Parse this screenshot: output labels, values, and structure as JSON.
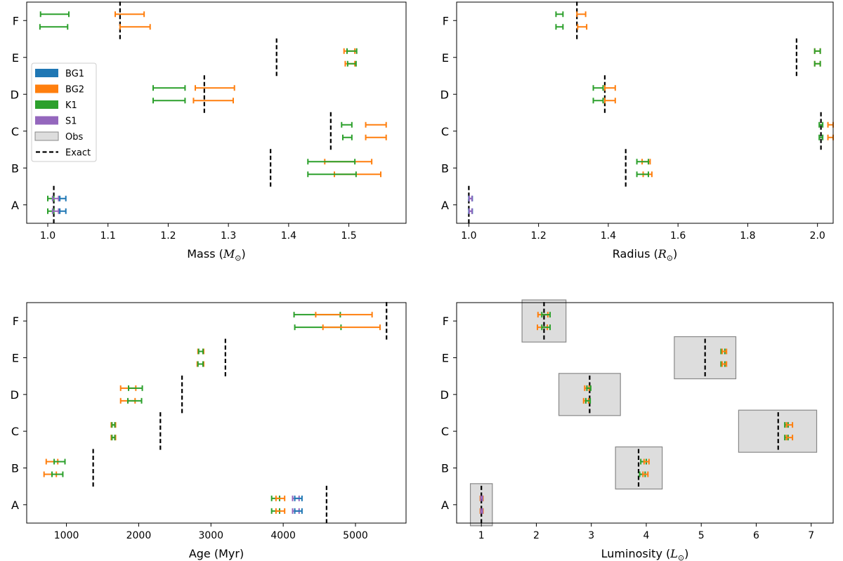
{
  "colors": {
    "BG1": "#1f77b4",
    "BG2": "#ff7f0e",
    "K1": "#2ca02c",
    "S1": "#9467bd",
    "obs_fill": "#dddddd",
    "obs_edge": "#888888",
    "exact": "#000000"
  },
  "legend": [
    {
      "key": "BG1",
      "label": "BG1",
      "kind": "patch"
    },
    {
      "key": "BG2",
      "label": "BG2",
      "kind": "patch"
    },
    {
      "key": "K1",
      "label": "K1",
      "kind": "patch"
    },
    {
      "key": "S1",
      "label": "S1",
      "kind": "patch"
    },
    {
      "key": "obs",
      "label": "Obs",
      "kind": "box"
    },
    {
      "key": "exact",
      "label": "Exact",
      "kind": "dash"
    }
  ],
  "chart_data": [
    {
      "id": "mass",
      "type": "errorbar",
      "xlabel": "Mass (M_⊙)",
      "xlabel_main": "Mass ",
      "xlabel_sym": "M",
      "xlabel_sub": "⊙",
      "xlim": [
        0.965,
        1.595
      ],
      "xticks": [
        1.0,
        1.1,
        1.2,
        1.3,
        1.4,
        1.5
      ],
      "xtick_labels": [
        "1.0",
        "1.1",
        "1.2",
        "1.3",
        "1.4",
        "1.5"
      ],
      "categories": [
        "A",
        "B",
        "C",
        "D",
        "E",
        "F"
      ],
      "legend_position": "center-left",
      "exact": {
        "A": 1.01,
        "B": 1.37,
        "C": 1.47,
        "D": 1.26,
        "E": 1.38,
        "F": 1.12
      },
      "obs": [],
      "bars": [
        {
          "cat": "A",
          "sub": 0,
          "series": "K1",
          "lo": 1.0,
          "hi": 1.01
        },
        {
          "cat": "A",
          "sub": 0,
          "series": "S1",
          "lo": 1.008,
          "hi": 1.018
        },
        {
          "cat": "A",
          "sub": 0,
          "series": "BG1",
          "lo": 1.02,
          "hi": 1.03
        },
        {
          "cat": "A",
          "sub": 1,
          "series": "K1",
          "lo": 1.0,
          "hi": 1.01
        },
        {
          "cat": "A",
          "sub": 1,
          "series": "S1",
          "lo": 1.008,
          "hi": 1.018
        },
        {
          "cat": "A",
          "sub": 1,
          "series": "BG1",
          "lo": 1.02,
          "hi": 1.03
        },
        {
          "cat": "B",
          "sub": 0,
          "series": "BG2",
          "lo": 1.46,
          "hi": 1.538
        },
        {
          "cat": "B",
          "sub": 0,
          "series": "K1",
          "lo": 1.432,
          "hi": 1.51
        },
        {
          "cat": "B",
          "sub": 1,
          "series": "BG2",
          "lo": 1.476,
          "hi": 1.553
        },
        {
          "cat": "B",
          "sub": 1,
          "series": "K1",
          "lo": 1.432,
          "hi": 1.512
        },
        {
          "cat": "C",
          "sub": 0,
          "series": "K1",
          "lo": 1.488,
          "hi": 1.505
        },
        {
          "cat": "C",
          "sub": 0,
          "series": "BG2",
          "lo": 1.528,
          "hi": 1.562
        },
        {
          "cat": "C",
          "sub": 1,
          "series": "K1",
          "lo": 1.49,
          "hi": 1.505
        },
        {
          "cat": "C",
          "sub": 1,
          "series": "BG2",
          "lo": 1.528,
          "hi": 1.562
        },
        {
          "cat": "D",
          "sub": 0,
          "series": "K1",
          "lo": 1.175,
          "hi": 1.228
        },
        {
          "cat": "D",
          "sub": 0,
          "series": "BG2",
          "lo": 1.245,
          "hi": 1.31
        },
        {
          "cat": "D",
          "sub": 1,
          "series": "K1",
          "lo": 1.175,
          "hi": 1.228
        },
        {
          "cat": "D",
          "sub": 1,
          "series": "BG2",
          "lo": 1.242,
          "hi": 1.308
        },
        {
          "cat": "E",
          "sub": 0,
          "series": "BG2",
          "lo": 1.492,
          "hi": 1.51
        },
        {
          "cat": "E",
          "sub": 0,
          "series": "K1",
          "lo": 1.497,
          "hi": 1.513
        },
        {
          "cat": "E",
          "sub": 1,
          "series": "BG2",
          "lo": 1.494,
          "hi": 1.51
        },
        {
          "cat": "E",
          "sub": 1,
          "series": "K1",
          "lo": 1.498,
          "hi": 1.512
        },
        {
          "cat": "F",
          "sub": 0,
          "series": "K1",
          "lo": 0.988,
          "hi": 1.035
        },
        {
          "cat": "F",
          "sub": 0,
          "series": "BG2",
          "lo": 1.112,
          "hi": 1.16
        },
        {
          "cat": "F",
          "sub": 1,
          "series": "K1",
          "lo": 0.987,
          "hi": 1.033
        },
        {
          "cat": "F",
          "sub": 1,
          "series": "BG2",
          "lo": 1.12,
          "hi": 1.17
        }
      ]
    },
    {
      "id": "radius",
      "type": "errorbar",
      "xlabel": "Radius (R_⊙)",
      "xlabel_main": "Radius ",
      "xlabel_sym": "R",
      "xlabel_sub": "⊙",
      "xlim": [
        0.965,
        2.045
      ],
      "xticks": [
        1.0,
        1.2,
        1.4,
        1.6,
        1.8,
        2.0
      ],
      "xtick_labels": [
        "1.0",
        "1.2",
        "1.4",
        "1.6",
        "1.8",
        "2.0"
      ],
      "categories": [
        "A",
        "B",
        "C",
        "D",
        "E",
        "F"
      ],
      "exact": {
        "A": 1.0,
        "B": 1.45,
        "C": 2.01,
        "D": 1.39,
        "E": 1.94,
        "F": 1.31
      },
      "obs": [],
      "bars": [
        {
          "cat": "A",
          "sub": 0,
          "series": "BG1",
          "lo": 1.0,
          "hi": 1.01
        },
        {
          "cat": "A",
          "sub": 0,
          "series": "S1",
          "lo": 1.001,
          "hi": 1.009
        },
        {
          "cat": "A",
          "sub": 1,
          "series": "BG1",
          "lo": 1.0,
          "hi": 1.01
        },
        {
          "cat": "A",
          "sub": 1,
          "series": "S1",
          "lo": 1.001,
          "hi": 1.009
        },
        {
          "cat": "B",
          "sub": 0,
          "series": "BG2",
          "lo": 1.497,
          "hi": 1.52
        },
        {
          "cat": "B",
          "sub": 0,
          "series": "K1",
          "lo": 1.482,
          "hi": 1.515
        },
        {
          "cat": "B",
          "sub": 1,
          "series": "BG2",
          "lo": 1.5,
          "hi": 1.525
        },
        {
          "cat": "B",
          "sub": 1,
          "series": "K1",
          "lo": 1.482,
          "hi": 1.515
        },
        {
          "cat": "C",
          "sub": 0,
          "series": "K1",
          "lo": 2.005,
          "hi": 2.015
        },
        {
          "cat": "C",
          "sub": 0,
          "series": "BG2",
          "lo": 2.03,
          "hi": 2.045
        },
        {
          "cat": "C",
          "sub": 1,
          "series": "K1",
          "lo": 2.005,
          "hi": 2.015
        },
        {
          "cat": "C",
          "sub": 1,
          "series": "BG2",
          "lo": 2.03,
          "hi": 2.045
        },
        {
          "cat": "D",
          "sub": 0,
          "series": "K1",
          "lo": 1.357,
          "hi": 1.385
        },
        {
          "cat": "D",
          "sub": 0,
          "series": "BG2",
          "lo": 1.39,
          "hi": 1.42
        },
        {
          "cat": "D",
          "sub": 1,
          "series": "K1",
          "lo": 1.357,
          "hi": 1.385
        },
        {
          "cat": "D",
          "sub": 1,
          "series": "BG2",
          "lo": 1.39,
          "hi": 1.42
        },
        {
          "cat": "E",
          "sub": 0,
          "series": "BG2",
          "lo": 1.992,
          "hi": 2.008
        },
        {
          "cat": "E",
          "sub": 0,
          "series": "K1",
          "lo": 1.992,
          "hi": 2.008
        },
        {
          "cat": "E",
          "sub": 1,
          "series": "BG2",
          "lo": 1.992,
          "hi": 2.008
        },
        {
          "cat": "E",
          "sub": 1,
          "series": "K1",
          "lo": 1.992,
          "hi": 2.008
        },
        {
          "cat": "F",
          "sub": 0,
          "series": "K1",
          "lo": 1.25,
          "hi": 1.27
        },
        {
          "cat": "F",
          "sub": 0,
          "series": "BG2",
          "lo": 1.31,
          "hi": 1.335
        },
        {
          "cat": "F",
          "sub": 1,
          "series": "K1",
          "lo": 1.25,
          "hi": 1.27
        },
        {
          "cat": "F",
          "sub": 1,
          "series": "BG2",
          "lo": 1.312,
          "hi": 1.338
        }
      ]
    },
    {
      "id": "age",
      "type": "errorbar",
      "xlabel": "Age (Myr)",
      "xlabel_main": "Age (Myr)",
      "xlabel_sym": "",
      "xlabel_sub": "",
      "xlim": [
        450,
        5700
      ],
      "xticks": [
        1000,
        2000,
        3000,
        4000,
        5000
      ],
      "xtick_labels": [
        "1000",
        "2000",
        "3000",
        "4000",
        "5000"
      ],
      "categories": [
        "A",
        "B",
        "C",
        "D",
        "E",
        "F"
      ],
      "exact": {
        "A": 4600,
        "B": 1370,
        "C": 2300,
        "D": 2600,
        "E": 3200,
        "F": 5430
      },
      "obs": [],
      "bars": [
        {
          "cat": "A",
          "sub": 0,
          "series": "K1",
          "lo": 3840,
          "hi": 3950
        },
        {
          "cat": "A",
          "sub": 0,
          "series": "BG2",
          "lo": 3900,
          "hi": 4020
        },
        {
          "cat": "A",
          "sub": 0,
          "series": "S1",
          "lo": 4130,
          "hi": 4220
        },
        {
          "cat": "A",
          "sub": 0,
          "series": "BG1",
          "lo": 4160,
          "hi": 4260
        },
        {
          "cat": "A",
          "sub": 1,
          "series": "K1",
          "lo": 3840,
          "hi": 3950
        },
        {
          "cat": "A",
          "sub": 1,
          "series": "BG2",
          "lo": 3900,
          "hi": 4020
        },
        {
          "cat": "A",
          "sub": 1,
          "series": "S1",
          "lo": 4130,
          "hi": 4220
        },
        {
          "cat": "A",
          "sub": 1,
          "series": "BG1",
          "lo": 4160,
          "hi": 4260
        },
        {
          "cat": "B",
          "sub": 0,
          "series": "BG2",
          "lo": 720,
          "hi": 880
        },
        {
          "cat": "B",
          "sub": 0,
          "series": "K1",
          "lo": 830,
          "hi": 980
        },
        {
          "cat": "B",
          "sub": 1,
          "series": "BG2",
          "lo": 690,
          "hi": 860
        },
        {
          "cat": "B",
          "sub": 1,
          "series": "K1",
          "lo": 800,
          "hi": 950
        },
        {
          "cat": "C",
          "sub": 0,
          "series": "BG2",
          "lo": 1620,
          "hi": 1680
        },
        {
          "cat": "C",
          "sub": 0,
          "series": "K1",
          "lo": 1630,
          "hi": 1670
        },
        {
          "cat": "C",
          "sub": 1,
          "series": "BG2",
          "lo": 1620,
          "hi": 1680
        },
        {
          "cat": "C",
          "sub": 1,
          "series": "K1",
          "lo": 1630,
          "hi": 1670
        },
        {
          "cat": "D",
          "sub": 0,
          "series": "BG2",
          "lo": 1750,
          "hi": 1960
        },
        {
          "cat": "D",
          "sub": 0,
          "series": "K1",
          "lo": 1860,
          "hi": 2050
        },
        {
          "cat": "D",
          "sub": 1,
          "series": "BG2",
          "lo": 1750,
          "hi": 1950
        },
        {
          "cat": "D",
          "sub": 1,
          "series": "K1",
          "lo": 1850,
          "hi": 2040
        },
        {
          "cat": "E",
          "sub": 0,
          "series": "BG2",
          "lo": 2820,
          "hi": 2900
        },
        {
          "cat": "E",
          "sub": 0,
          "series": "K1",
          "lo": 2830,
          "hi": 2890
        },
        {
          "cat": "E",
          "sub": 1,
          "series": "BG2",
          "lo": 2810,
          "hi": 2900
        },
        {
          "cat": "E",
          "sub": 1,
          "series": "K1",
          "lo": 2820,
          "hi": 2890
        },
        {
          "cat": "F",
          "sub": 0,
          "series": "K1",
          "lo": 4150,
          "hi": 4790
        },
        {
          "cat": "F",
          "sub": 0,
          "series": "BG2",
          "lo": 4450,
          "hi": 5230
        },
        {
          "cat": "F",
          "sub": 1,
          "series": "K1",
          "lo": 4160,
          "hi": 4800
        },
        {
          "cat": "F",
          "sub": 1,
          "series": "BG2",
          "lo": 4550,
          "hi": 5340
        }
      ]
    },
    {
      "id": "luminosity",
      "type": "errorbar",
      "xlabel": "Luminosity (L_⊙)",
      "xlabel_main": "Luminosity ",
      "xlabel_sym": "L",
      "xlabel_sub": "⊙",
      "xlim": [
        0.55,
        7.4
      ],
      "xticks": [
        1,
        2,
        3,
        4,
        5,
        6,
        7
      ],
      "xtick_labels": [
        "1",
        "2",
        "3",
        "4",
        "5",
        "6",
        "7"
      ],
      "categories": [
        "A",
        "B",
        "C",
        "D",
        "E",
        "F"
      ],
      "exact": {
        "A": 1.0,
        "B": 3.86,
        "C": 6.4,
        "D": 2.97,
        "E": 5.07,
        "F": 2.14
      },
      "obs": [
        {
          "cat": "A",
          "lo": 0.8,
          "hi": 1.2
        },
        {
          "cat": "B",
          "lo": 3.44,
          "hi": 4.29
        },
        {
          "cat": "C",
          "lo": 5.68,
          "hi": 7.1
        },
        {
          "cat": "D",
          "lo": 2.41,
          "hi": 3.53
        },
        {
          "cat": "E",
          "lo": 4.51,
          "hi": 5.63
        },
        {
          "cat": "F",
          "lo": 1.74,
          "hi": 2.54
        }
      ],
      "bars": [
        {
          "cat": "A",
          "sub": 0,
          "series": "BG2",
          "lo": 0.98,
          "hi": 1.03
        },
        {
          "cat": "A",
          "sub": 0,
          "series": "S1",
          "lo": 0.99,
          "hi": 1.02
        },
        {
          "cat": "A",
          "sub": 1,
          "series": "BG2",
          "lo": 0.98,
          "hi": 1.03
        },
        {
          "cat": "A",
          "sub": 1,
          "series": "S1",
          "lo": 0.99,
          "hi": 1.02
        },
        {
          "cat": "B",
          "sub": 0,
          "series": "K1",
          "lo": 3.9,
          "hi": 4.0
        },
        {
          "cat": "B",
          "sub": 0,
          "series": "BG2",
          "lo": 3.96,
          "hi": 4.05
        },
        {
          "cat": "B",
          "sub": 1,
          "series": "K1",
          "lo": 3.88,
          "hi": 3.98
        },
        {
          "cat": "B",
          "sub": 1,
          "series": "BG2",
          "lo": 3.94,
          "hi": 4.03
        },
        {
          "cat": "C",
          "sub": 0,
          "series": "K1",
          "lo": 6.52,
          "hi": 6.58
        },
        {
          "cat": "C",
          "sub": 0,
          "series": "BG2",
          "lo": 6.55,
          "hi": 6.66
        },
        {
          "cat": "C",
          "sub": 1,
          "series": "K1",
          "lo": 6.52,
          "hi": 6.58
        },
        {
          "cat": "C",
          "sub": 1,
          "series": "BG2",
          "lo": 6.55,
          "hi": 6.66
        },
        {
          "cat": "D",
          "sub": 0,
          "series": "BG2",
          "lo": 2.88,
          "hi": 2.96
        },
        {
          "cat": "D",
          "sub": 0,
          "series": "K1",
          "lo": 2.92,
          "hi": 2.99
        },
        {
          "cat": "D",
          "sub": 1,
          "series": "BG2",
          "lo": 2.86,
          "hi": 2.95
        },
        {
          "cat": "D",
          "sub": 1,
          "series": "K1",
          "lo": 2.9,
          "hi": 2.98
        },
        {
          "cat": "E",
          "sub": 0,
          "series": "K1",
          "lo": 5.36,
          "hi": 5.43
        },
        {
          "cat": "E",
          "sub": 0,
          "series": "BG2",
          "lo": 5.38,
          "hi": 5.46
        },
        {
          "cat": "E",
          "sub": 1,
          "series": "K1",
          "lo": 5.36,
          "hi": 5.43
        },
        {
          "cat": "E",
          "sub": 1,
          "series": "BG2",
          "lo": 5.38,
          "hi": 5.46
        },
        {
          "cat": "F",
          "sub": 0,
          "series": "BG2",
          "lo": 2.03,
          "hi": 2.21
        },
        {
          "cat": "F",
          "sub": 0,
          "series": "K1",
          "lo": 2.1,
          "hi": 2.25
        },
        {
          "cat": "F",
          "sub": 1,
          "series": "BG2",
          "lo": 2.02,
          "hi": 2.2
        },
        {
          "cat": "F",
          "sub": 1,
          "series": "K1",
          "lo": 2.1,
          "hi": 2.25
        }
      ]
    }
  ]
}
